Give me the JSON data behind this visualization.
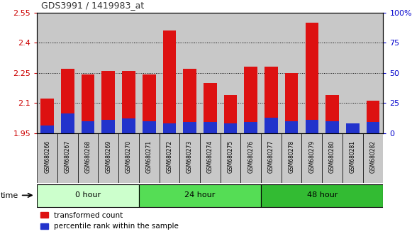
{
  "title": "GDS3991 / 1419983_at",
  "samples": [
    "GSM680266",
    "GSM680267",
    "GSM680268",
    "GSM680269",
    "GSM680270",
    "GSM680271",
    "GSM680272",
    "GSM680273",
    "GSM680274",
    "GSM680275",
    "GSM680276",
    "GSM680277",
    "GSM680278",
    "GSM680279",
    "GSM680280",
    "GSM680281",
    "GSM680282"
  ],
  "transformed_count": [
    2.12,
    2.27,
    2.24,
    2.26,
    2.26,
    2.24,
    2.46,
    2.27,
    2.2,
    2.14,
    2.28,
    2.28,
    2.25,
    2.5,
    2.14,
    1.95,
    2.11
  ],
  "percentile_rank": [
    6,
    16,
    10,
    11,
    12,
    10,
    8,
    9,
    9,
    8,
    9,
    13,
    10,
    11,
    10,
    8,
    9
  ],
  "baseline": 1.95,
  "ylim_left": [
    1.95,
    2.55
  ],
  "ylim_right": [
    0,
    100
  ],
  "yticks_left": [
    1.95,
    2.1,
    2.25,
    2.4,
    2.55
  ],
  "yticks_right": [
    0,
    25,
    50,
    75,
    100
  ],
  "groups": [
    {
      "label": "0 hour",
      "start": 0,
      "end": 5,
      "color": "#ccffcc"
    },
    {
      "label": "24 hour",
      "start": 5,
      "end": 11,
      "color": "#55dd55"
    },
    {
      "label": "48 hour",
      "start": 11,
      "end": 17,
      "color": "#33bb33"
    }
  ],
  "bar_width": 0.65,
  "red_color": "#dd1111",
  "blue_color": "#2233cc",
  "cell_bg_color": "#c8c8c8",
  "plot_bg": "#ffffff",
  "title_color": "#333333",
  "left_tick_color": "#cc0000",
  "right_tick_color": "#0000cc",
  "grid_color": "#000000"
}
